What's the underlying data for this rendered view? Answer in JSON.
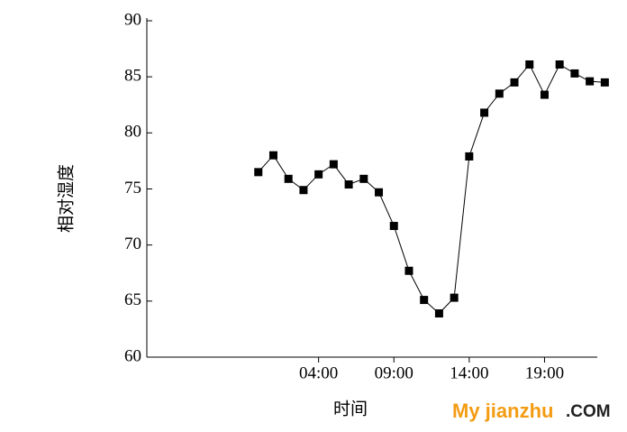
{
  "chart_data": {
    "type": "line",
    "x_label": "时间",
    "y_label": "相对湿度",
    "x": [
      0,
      1,
      2,
      3,
      4,
      5,
      6,
      7,
      8,
      9,
      10,
      11,
      12,
      13,
      14,
      15,
      16,
      17,
      18,
      19,
      20,
      21,
      22,
      23
    ],
    "series": [
      {
        "color": "#000000",
        "values": [
          76.5,
          78.0,
          75.9,
          74.9,
          76.3,
          77.2,
          75.4,
          75.9,
          74.7,
          71.7,
          67.7,
          65.1,
          63.9,
          65.3,
          77.9,
          81.8,
          83.5,
          84.5,
          86.1,
          83.4,
          86.1,
          85.3,
          84.6,
          84.5
        ]
      }
    ],
    "xlim": [
      -7.4,
      22.5
    ],
    "xticks": [
      {
        "value": 4,
        "label": "04:00"
      },
      {
        "value": 9,
        "label": "09:00"
      },
      {
        "value": 14,
        "label": "14:00"
      },
      {
        "value": 19,
        "label": "19:00"
      }
    ],
    "ylim": [
      60,
      90
    ],
    "yticks": [
      60,
      65,
      70,
      75,
      80,
      85,
      90
    ],
    "watermark": {
      "brand": "My jianzhu",
      "suffix": ".COM"
    }
  }
}
